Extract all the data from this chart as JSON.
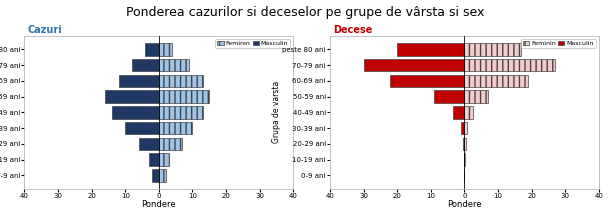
{
  "title": "Ponderea cazurilor si deceselor pe grupe de vârsta si sex",
  "age_groups": [
    "0-9 ani",
    "10-19 ani",
    "20-29 ani",
    "30-39 ani",
    "40-49 ani",
    "50-59 ani",
    "60-69 ani",
    "70-79 ani",
    "peste 80 ani"
  ],
  "cazuri": {
    "label": "Cazuri",
    "feminin": [
      2,
      3,
      7,
      10,
      13,
      15,
      13,
      9,
      4
    ],
    "masculin": [
      2,
      3,
      6,
      10,
      14,
      16,
      12,
      8,
      4
    ],
    "color_masculin": "#1F3864",
    "color_feminin": "#9DC3E6",
    "hatch_feminin": "|||",
    "hatch_masculin": "",
    "title_color": "#2E74B5"
  },
  "decese": {
    "label": "Decese",
    "feminin": [
      0,
      0.2,
      0.4,
      0.8,
      2.5,
      7,
      19,
      27,
      17
    ],
    "masculin": [
      0,
      0.2,
      0.4,
      1.0,
      3.5,
      9,
      22,
      30,
      20
    ],
    "color_masculin": "#C00000",
    "color_feminin": "#F4CCCC",
    "hatch_feminin": "|||",
    "hatch_masculin": "",
    "title_color": "#C00000"
  },
  "xlabel": "Pondere",
  "ylabel": "Grupa de varsta",
  "xlim": 40,
  "xticks": [
    -40,
    -30,
    -20,
    -10,
    0,
    10,
    20,
    30,
    40
  ],
  "xticklabels": [
    "40",
    "30",
    "20",
    "10",
    "0",
    "10",
    "20",
    "30",
    "40"
  ],
  "legend_feminin": "Feminin",
  "legend_masculin": "Masculin",
  "bg_color": "#FFFFFF",
  "panel_bg": "#FFFFFF",
  "spine_color": "#AAAAAA",
  "title_fontsize": 9,
  "label_fontsize": 5.5,
  "tick_fontsize": 5,
  "xlabel_fontsize": 6,
  "panel_title_fontsize": 7,
  "legend_fontsize": 4.5,
  "bar_height": 0.8,
  "bar_edgecolor": "#444444",
  "bar_linewidth": 0.5
}
